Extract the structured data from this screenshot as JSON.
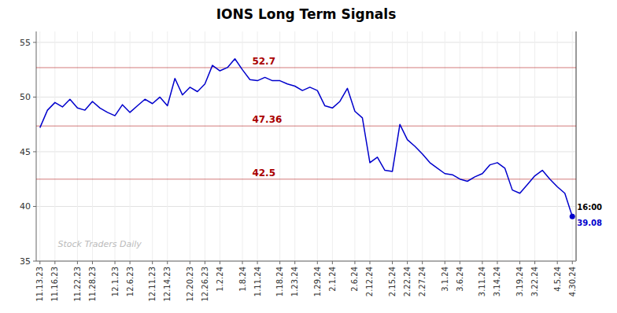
{
  "chart_data": {
    "type": "line",
    "title": "IONS Long Term Signals",
    "watermark": "Stock Traders Daily",
    "annotation": "16:00",
    "color": "#0000cc",
    "marker": "circle",
    "grid": true,
    "ylim": [
      35,
      56
    ],
    "yticks": [
      35,
      40,
      45,
      50,
      55
    ],
    "hlines": [
      {
        "value": 52.7,
        "label": "52.7",
        "color": "#aa0000"
      },
      {
        "value": 47.36,
        "label": "47.36",
        "color": "#aa0000"
      },
      {
        "value": 42.5,
        "label": "42.5",
        "color": "#aa0000"
      }
    ],
    "categories": [
      "11.13.23",
      null,
      "11.16.23",
      null,
      null,
      "11.22.23",
      null,
      "11.28.23",
      null,
      null,
      "12.1.23",
      null,
      "12.6.23",
      null,
      null,
      "12.11.23",
      null,
      "12.14.23",
      null,
      null,
      "12.20.23",
      null,
      "12.26.23",
      null,
      "1.2.24",
      null,
      null,
      "1.8.24",
      null,
      "1.11.24",
      null,
      null,
      "1.18.24",
      null,
      "1.23.24",
      null,
      null,
      "1.29.24",
      null,
      "2.1.24",
      null,
      null,
      "2.6.24",
      null,
      "2.12.24",
      null,
      null,
      "2.15.24",
      null,
      "2.22.24",
      null,
      "2.27.24",
      null,
      null,
      "3.1.24",
      null,
      "3.6.24",
      null,
      null,
      "3.11.24",
      null,
      "3.14.24",
      null,
      null,
      "3.19.24",
      null,
      "3.22.24",
      null,
      null,
      "4.5.24",
      null,
      "4.30.24"
    ],
    "values": [
      47.2,
      48.8,
      49.5,
      49.1,
      49.8,
      49.0,
      48.8,
      49.6,
      49.0,
      48.6,
      48.3,
      49.3,
      48.6,
      49.2,
      49.8,
      49.4,
      50.0,
      49.2,
      51.7,
      50.2,
      50.9,
      50.5,
      51.2,
      52.9,
      52.4,
      52.7,
      53.5,
      52.5,
      51.6,
      51.5,
      51.8,
      51.5,
      51.5,
      51.2,
      51.0,
      50.6,
      50.9,
      50.6,
      49.2,
      49.0,
      49.6,
      50.8,
      48.7,
      48.1,
      44.0,
      44.5,
      43.3,
      43.2,
      47.5,
      46.1,
      45.5,
      44.8,
      44.0,
      43.5,
      43.0,
      42.9,
      42.5,
      42.3,
      42.7,
      43.0,
      43.8,
      44.0,
      43.5,
      41.5,
      41.2,
      42.0,
      42.8,
      43.3,
      42.5,
      41.8,
      41.2,
      39.08
    ]
  }
}
